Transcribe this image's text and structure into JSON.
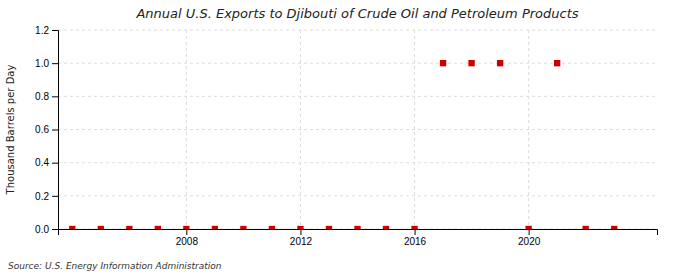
{
  "chart_data": {
    "type": "scatter",
    "title": "Annual U.S. Exports to Djibouti of Crude Oil and Petroleum Products",
    "ylabel": "Thousand Barrels per Day",
    "annotation": "Source: U.S. Energy Information Administration",
    "x": [
      2004,
      2005,
      2006,
      2007,
      2008,
      2009,
      2010,
      2011,
      2012,
      2013,
      2014,
      2015,
      2016,
      2017,
      2018,
      2019,
      2020,
      2021,
      2022,
      2023
    ],
    "values": [
      0,
      0,
      0,
      0,
      0,
      0,
      0,
      0,
      0,
      0,
      0,
      0,
      0,
      1,
      1,
      1,
      0,
      1,
      0,
      0
    ],
    "color": "#cc0000",
    "marker": "square",
    "xlim": [
      2003.5,
      2024.5
    ],
    "xticks": [
      2008,
      2012,
      2016,
      2020
    ],
    "ylim": [
      0,
      1.2
    ],
    "yticks": [
      {
        "value": 0,
        "label": "0.0"
      },
      0.2,
      0.4,
      0.6,
      0.8,
      {
        "value": 1,
        "label": "1.0"
      },
      1.2
    ],
    "grid": true
  }
}
